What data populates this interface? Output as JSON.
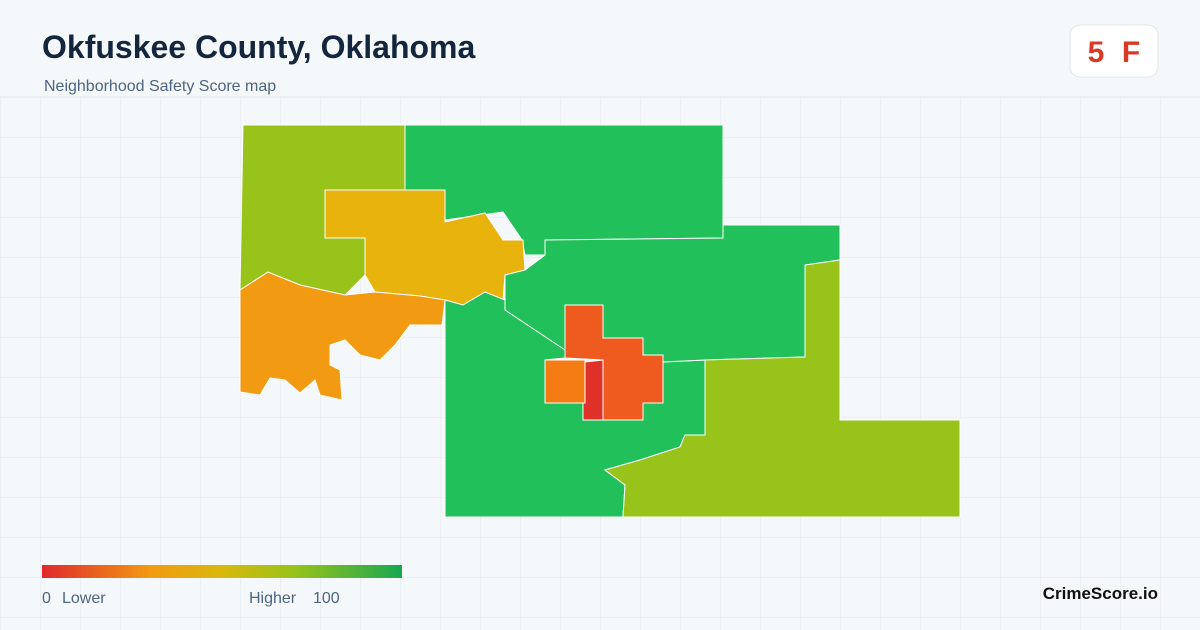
{
  "header": {
    "title": "Okfuskee County, Oklahoma",
    "subtitle": "Neighborhood Safety Score map"
  },
  "badge": {
    "score": "5",
    "grade": "F"
  },
  "legend": {
    "min": 0,
    "min_label": "Lower",
    "max_label": "Higher",
    "max": 100
  },
  "brand": "CrimeScore.io"
}
